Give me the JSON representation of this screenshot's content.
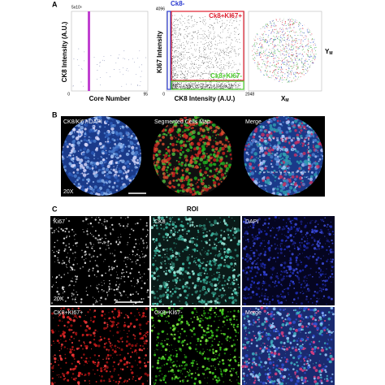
{
  "panel_a": {
    "label": "A",
    "plot1": {
      "y_top": "5x10⁵",
      "y_zero": "0",
      "x_end": "95",
      "y_label": "CK8 Intensity (A.U.)",
      "x_label": "Core Number"
    },
    "plot2": {
      "y_top": "4096",
      "x_end": "2048",
      "y_zero": "0",
      "y_label": "KI67 Intensity",
      "x_label": "CK8 Intensity (A.U.)",
      "gate_neg": "Ck8-",
      "gate_pos_pos": "Ck8+KI67+",
      "gate_pos_neg": "Ck8+KI67-"
    },
    "plot3": {
      "y_axis": {
        "main": "Y",
        "sub": "M"
      },
      "x_axis": {
        "main": "X",
        "sub": "M"
      }
    }
  },
  "panel_b": {
    "label": "B",
    "titles": [
      "CK8/Ki67/DAPI",
      "Segmented Cells Map",
      "Merge"
    ],
    "magnification": "20X"
  },
  "panel_c": {
    "label": "C",
    "roi": "ROI",
    "titles": [
      "Ki67",
      "CK8",
      "DAPI",
      "CK8+KI67+",
      "CK8+KI67-",
      "Merge"
    ],
    "magnification": "20X"
  }
}
